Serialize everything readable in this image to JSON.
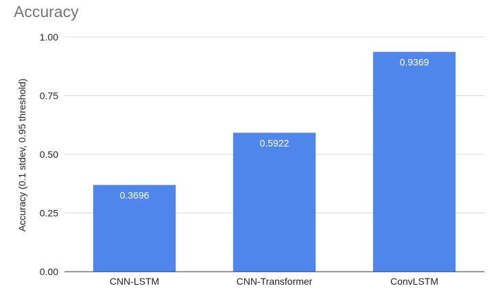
{
  "chart_data": {
    "type": "bar",
    "title": "Accuracy",
    "ylabel": "Accuracy (0.1 stdev, 0.95 threshold)",
    "xlabel": "",
    "categories": [
      "CNN-LSTM",
      "CNN-Transformer",
      "ConvLSTM"
    ],
    "values": [
      0.3696,
      0.5922,
      0.9369
    ],
    "data_labels": [
      "0.3696",
      "0.5922",
      "0.9369"
    ],
    "ylim": [
      0,
      1
    ],
    "yticks": [
      0,
      0.25,
      0.5,
      0.75,
      1
    ],
    "ytick_labels": [
      "0.00",
      "0.25",
      "0.50",
      "0.75",
      "1.00"
    ],
    "grid": true,
    "legend": "none",
    "bar_color": "#4f86ec",
    "grid_color": "#d9d9d9",
    "axis_color": "#333333"
  }
}
